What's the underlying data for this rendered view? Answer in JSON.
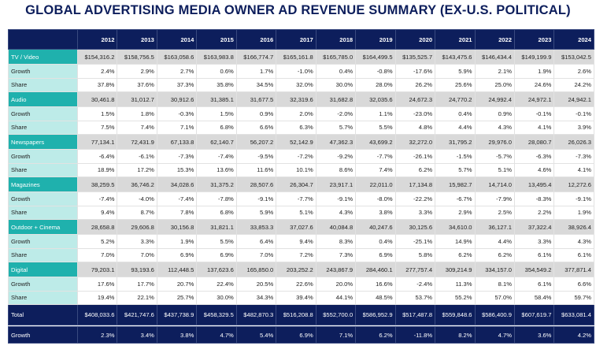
{
  "title": "GLOBAL ADVERTISING MEDIA OWNER AD REVENUE SUMMARY (EX-U.S. POLITICAL)",
  "table": {
    "years": [
      "2012",
      "2013",
      "2014",
      "2015",
      "2016",
      "2017",
      "2018",
      "2019",
      "2020",
      "2021",
      "2022",
      "2023",
      "2024"
    ],
    "segments": [
      {
        "label": "TV / Video",
        "values": [
          "$154,316.2",
          "$158,756.5",
          "$163,058.6",
          "$163,983.8",
          "$166,774.7",
          "$165,161.8",
          "$165,785.0",
          "$164,499.5",
          "$135,525.7",
          "$143,475.6",
          "$146,434.4",
          "$149,199.9",
          "$153,042.5"
        ],
        "sub": [
          {
            "label": "Growth",
            "values": [
              "2.4%",
              "2.9%",
              "2.7%",
              "0.6%",
              "1.7%",
              "-1.0%",
              "0.4%",
              "-0.8%",
              "-17.6%",
              "5.9%",
              "2.1%",
              "1.9%",
              "2.6%"
            ]
          },
          {
            "label": "Share",
            "values": [
              "37.8%",
              "37.6%",
              "37.3%",
              "35.8%",
              "34.5%",
              "32.0%",
              "30.0%",
              "28.0%",
              "26.2%",
              "25.6%",
              "25.0%",
              "24.6%",
              "24.2%"
            ]
          }
        ]
      },
      {
        "label": "Audio",
        "values": [
          "30,461.8",
          "31,012.7",
          "30,912.6",
          "31,385.1",
          "31,677.5",
          "32,319.6",
          "31,682.8",
          "32,035.6",
          "24,672.3",
          "24,770.2",
          "24,992.4",
          "24,972.1",
          "24,942.1"
        ],
        "sub": [
          {
            "label": "Growth",
            "values": [
              "1.5%",
              "1.8%",
              "-0.3%",
              "1.5%",
              "0.9%",
              "2.0%",
              "-2.0%",
              "1.1%",
              "-23.0%",
              "0.4%",
              "0.9%",
              "-0.1%",
              "-0.1%"
            ]
          },
          {
            "label": "Share",
            "values": [
              "7.5%",
              "7.4%",
              "7.1%",
              "6.8%",
              "6.6%",
              "6.3%",
              "5.7%",
              "5.5%",
              "4.8%",
              "4.4%",
              "4.3%",
              "4.1%",
              "3.9%"
            ]
          }
        ]
      },
      {
        "label": "Newspapers",
        "values": [
          "77,134.1",
          "72,431.9",
          "67,133.8",
          "62,140.7",
          "56,207.2",
          "52,142.9",
          "47,362.3",
          "43,699.2",
          "32,272.0",
          "31,795.2",
          "29,976.0",
          "28,080.7",
          "26,026.3"
        ],
        "sub": [
          {
            "label": "Growth",
            "values": [
              "-6.4%",
              "-6.1%",
              "-7.3%",
              "-7.4%",
              "-9.5%",
              "-7.2%",
              "-9.2%",
              "-7.7%",
              "-26.1%",
              "-1.5%",
              "-5.7%",
              "-6.3%",
              "-7.3%"
            ]
          },
          {
            "label": "Share",
            "values": [
              "18.9%",
              "17.2%",
              "15.3%",
              "13.6%",
              "11.6%",
              "10.1%",
              "8.6%",
              "7.4%",
              "6.2%",
              "5.7%",
              "5.1%",
              "4.6%",
              "4.1%"
            ]
          }
        ]
      },
      {
        "label": "Magazines",
        "values": [
          "38,259.5",
          "36,746.2",
          "34,028.6",
          "31,375.2",
          "28,507.6",
          "26,304.7",
          "23,917.1",
          "22,011.0",
          "17,134.8",
          "15,982.7",
          "14,714.0",
          "13,495.4",
          "12,272.6"
        ],
        "sub": [
          {
            "label": "Growth",
            "values": [
              "-7.4%",
              "-4.0%",
              "-7.4%",
              "-7.8%",
              "-9.1%",
              "-7.7%",
              "-9.1%",
              "-8.0%",
              "-22.2%",
              "-6.7%",
              "-7.9%",
              "-8.3%",
              "-9.1%"
            ]
          },
          {
            "label": "Share",
            "values": [
              "9.4%",
              "8.7%",
              "7.8%",
              "6.8%",
              "5.9%",
              "5.1%",
              "4.3%",
              "3.8%",
              "3.3%",
              "2.9%",
              "2.5%",
              "2.2%",
              "1.9%"
            ]
          }
        ]
      },
      {
        "label": "Outdoor + Cinema",
        "values": [
          "28,658.8",
          "29,606.8",
          "30,156.8",
          "31,821.1",
          "33,853.3",
          "37,027.6",
          "40,084.8",
          "40,247.6",
          "30,125.6",
          "34,610.0",
          "36,127.1",
          "37,322.4",
          "38,926.4"
        ],
        "sub": [
          {
            "label": "Growth",
            "values": [
              "5.2%",
              "3.3%",
              "1.9%",
              "5.5%",
              "6.4%",
              "9.4%",
              "8.3%",
              "0.4%",
              "-25.1%",
              "14.9%",
              "4.4%",
              "3.3%",
              "4.3%"
            ]
          },
          {
            "label": "Share",
            "values": [
              "7.0%",
              "7.0%",
              "6.9%",
              "6.9%",
              "7.0%",
              "7.2%",
              "7.3%",
              "6.9%",
              "5.8%",
              "6.2%",
              "6.2%",
              "6.1%",
              "6.1%"
            ]
          }
        ]
      },
      {
        "label": "Digital",
        "values": [
          "79,203.1",
          "93,193.6",
          "112,448.5",
          "137,623.6",
          "165,850.0",
          "203,252.2",
          "243,867.9",
          "284,460.1",
          "277,757.4",
          "309,214.9",
          "334,157.0",
          "354,549.2",
          "377,871.4"
        ],
        "sub": [
          {
            "label": "Growth",
            "values": [
              "17.6%",
              "17.7%",
              "20.7%",
              "22.4%",
              "20.5%",
              "22.6%",
              "20.0%",
              "16.6%",
              "-2.4%",
              "11.3%",
              "8.1%",
              "6.1%",
              "6.6%"
            ]
          },
          {
            "label": "Share",
            "values": [
              "19.4%",
              "22.1%",
              "25.7%",
              "30.0%",
              "34.3%",
              "39.4%",
              "44.1%",
              "48.5%",
              "53.7%",
              "55.2%",
              "57.0%",
              "58.4%",
              "59.7%"
            ]
          }
        ]
      }
    ],
    "total": {
      "label": "Total",
      "values": [
        "$408,033.6",
        "$421,747.6",
        "$437,738.9",
        "$458,329.5",
        "$482,870.3",
        "$516,208.8",
        "$552,700.0",
        "$586,952.9",
        "$517,487.8",
        "$559,848.6",
        "$586,400.9",
        "$607,619.7",
        "$633,081.4"
      ],
      "sub": [
        {
          "label": "Growth",
          "values": [
            "2.3%",
            "3.4%",
            "3.8%",
            "4.7%",
            "5.4%",
            "6.9%",
            "7.1%",
            "6.2%",
            "-11.8%",
            "8.2%",
            "4.7%",
            "3.6%",
            "4.2%"
          ]
        }
      ]
    }
  }
}
